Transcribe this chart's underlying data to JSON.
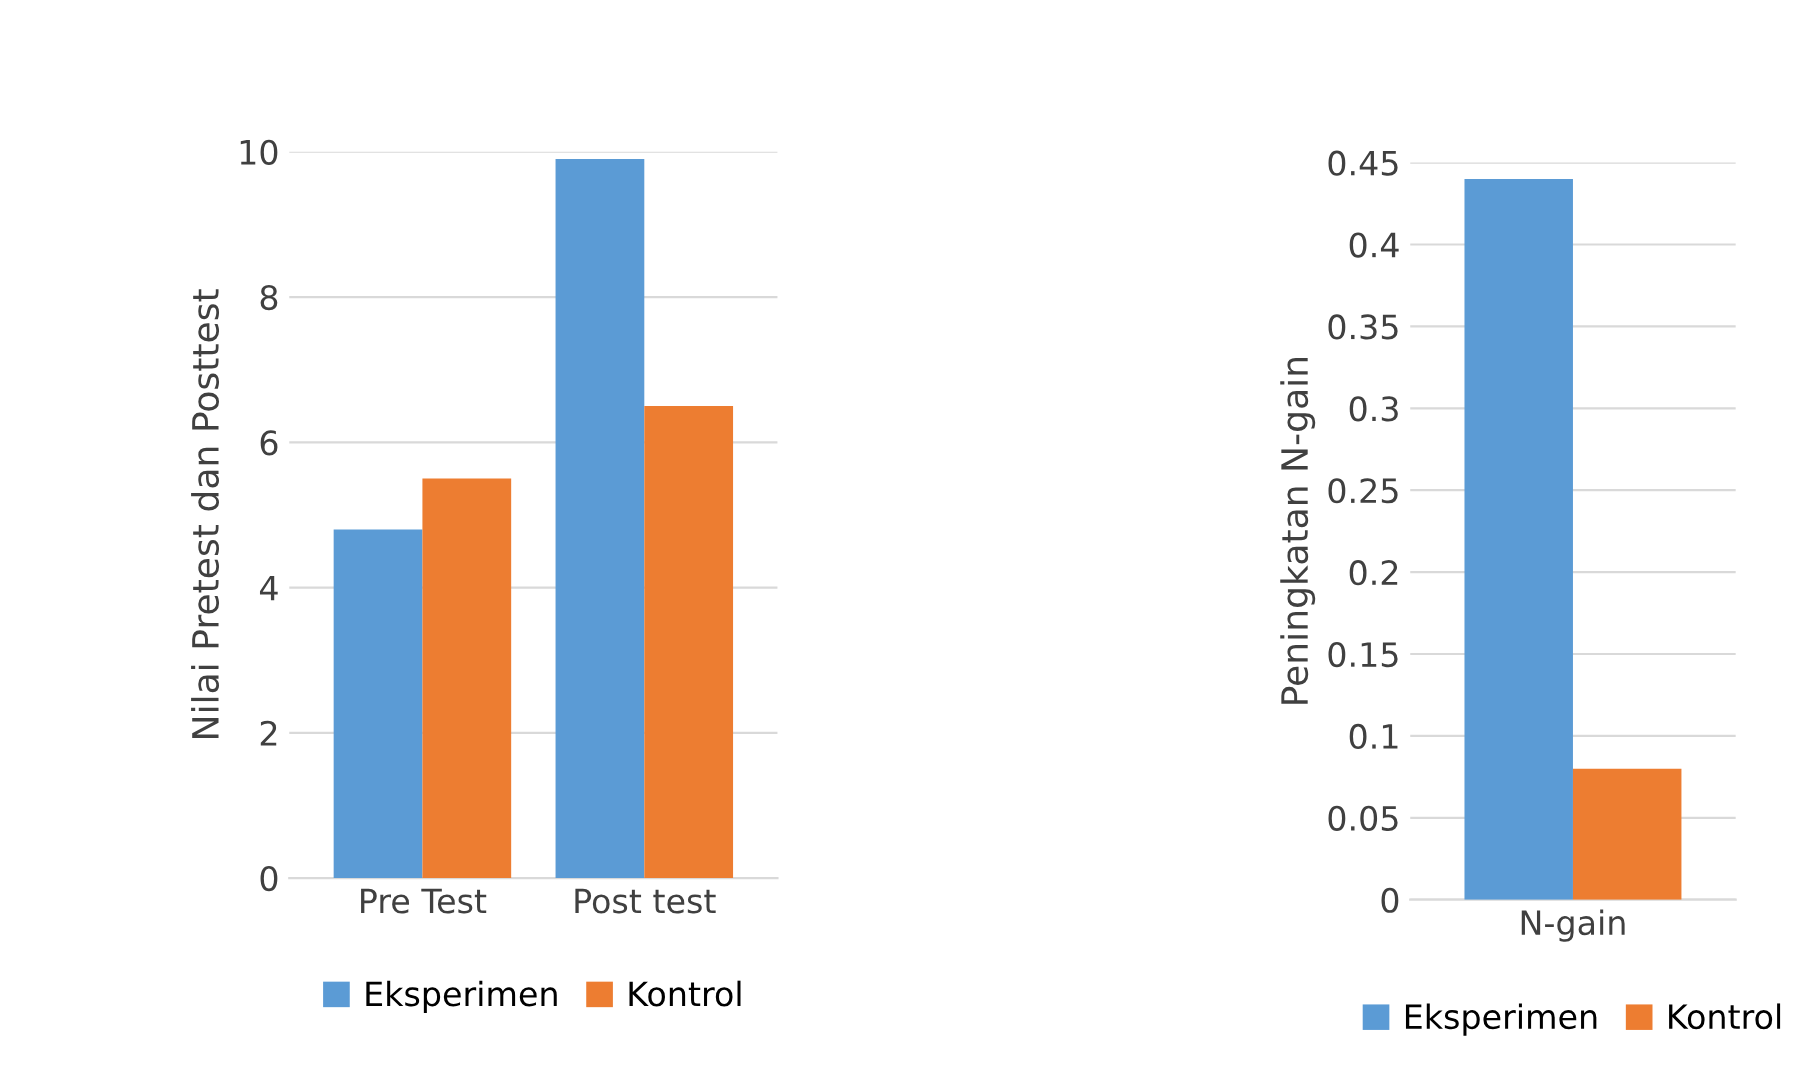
{
  "chart_data": [
    {
      "type": "bar",
      "ylabel": "Nilai Pretest dan Posttest",
      "categories": [
        "Pre Test",
        "Post test"
      ],
      "series": [
        {
          "name": "Eksperimen",
          "color": "#5b9bd5",
          "values": [
            4.8,
            9.9
          ]
        },
        {
          "name": "Kontrol",
          "color": "#ed7d31",
          "values": [
            5.5,
            6.5
          ]
        }
      ],
      "ylim": [
        0,
        10
      ],
      "yticks": [
        0,
        2,
        4,
        6,
        8,
        10
      ],
      "grid": "y",
      "legend": "bottom"
    },
    {
      "type": "bar",
      "ylabel": "Peningkatan N-gain",
      "categories": [
        "N-gain"
      ],
      "series": [
        {
          "name": "Eksperimen",
          "color": "#5b9bd5",
          "values": [
            0.44
          ]
        },
        {
          "name": "Kontrol",
          "color": "#ed7d31",
          "values": [
            0.08
          ]
        }
      ],
      "ylim": [
        0,
        0.45
      ],
      "yticks": [
        0,
        0.05,
        0.1,
        0.15,
        0.2,
        0.25,
        0.3,
        0.35,
        0.4,
        0.45
      ],
      "grid": "y",
      "legend": "bottom"
    }
  ]
}
